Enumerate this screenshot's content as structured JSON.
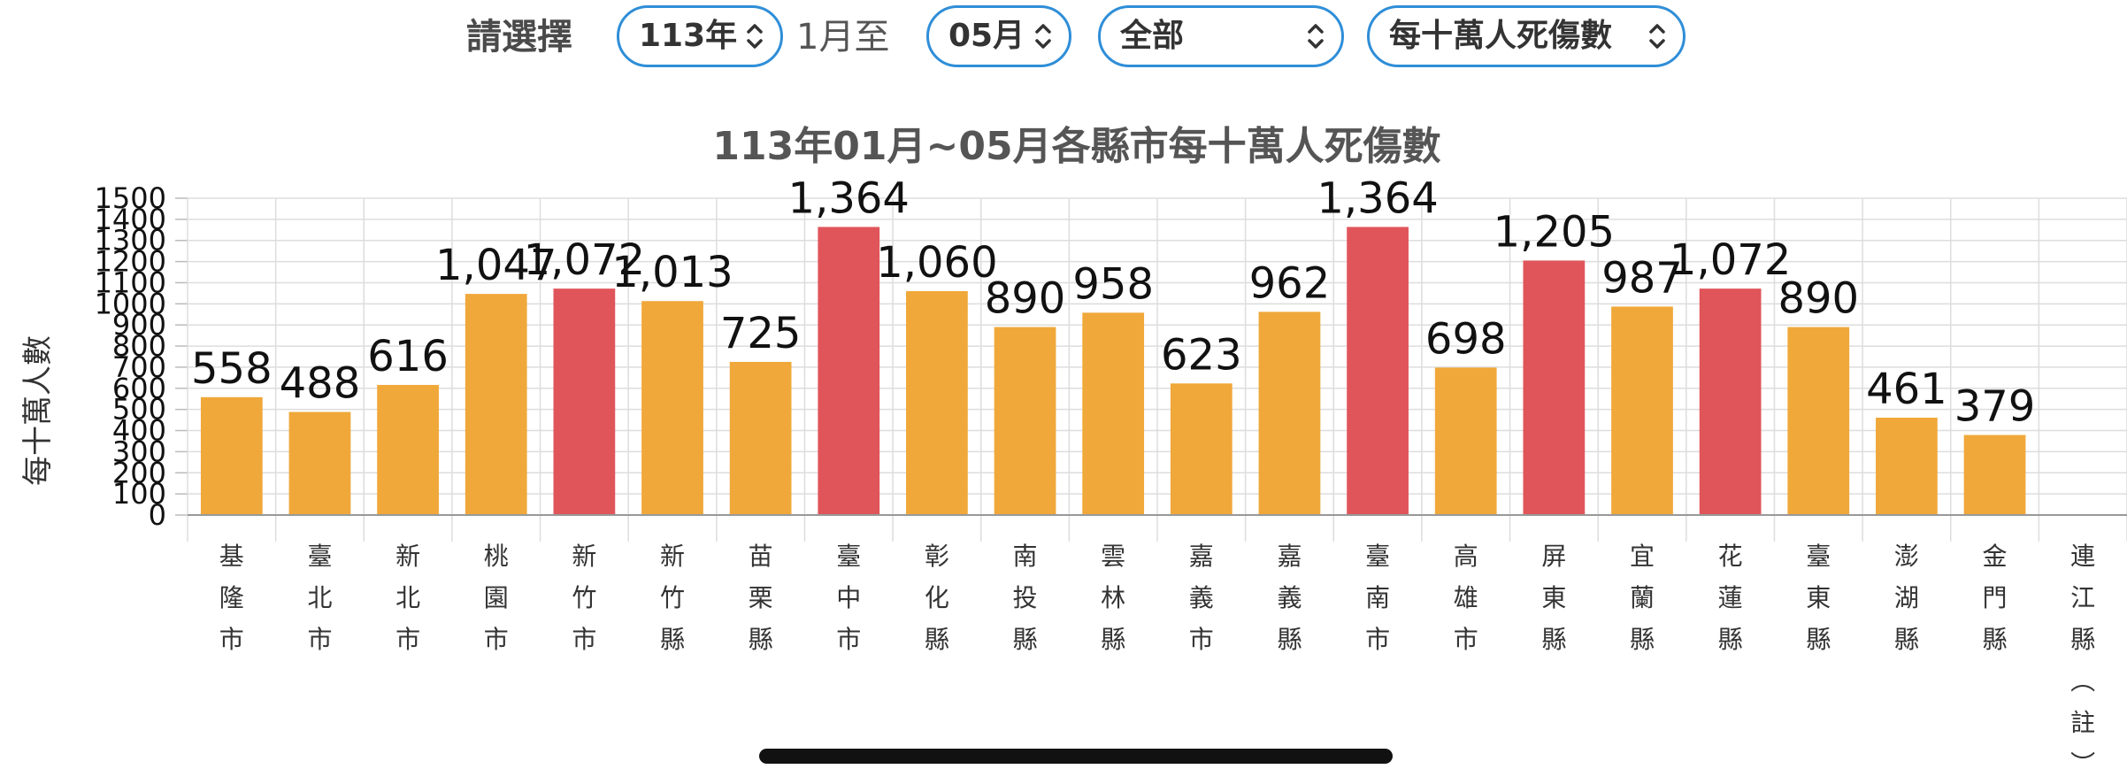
{
  "filters": {
    "prompt": "請選擇",
    "year": "113年",
    "from_month_label": "1月至",
    "to_month": "05月",
    "region": "全部",
    "metric": "每十萬人死傷數"
  },
  "colors": {
    "normal": "#f0a83a",
    "highlight": "#e0555a",
    "grid": "#dddddd",
    "accent": "#2f8ed8"
  },
  "icons": {
    "select_chevron": "chevron-up-down-icon"
  },
  "chart_data": {
    "type": "bar",
    "title": "113年01月~05月各縣市每十萬人死傷數",
    "ylabel": "每十萬人數",
    "xlabel": "",
    "ylim": [
      0,
      1500
    ],
    "yticks": [
      0,
      100,
      200,
      300,
      400,
      500,
      600,
      700,
      800,
      900,
      1000,
      1100,
      1200,
      1300,
      1400,
      1500
    ],
    "grid": true,
    "categories": [
      "基隆市",
      "臺北市",
      "新北市",
      "桃園市",
      "新竹市",
      "新竹縣",
      "苗栗縣",
      "臺中市",
      "彰化縣",
      "南投縣",
      "雲林縣",
      "嘉義市",
      "嘉義縣",
      "臺南市",
      "高雄市",
      "屏東縣",
      "宜蘭縣",
      "花蓮縣",
      "臺東縣",
      "澎湖縣",
      "金門縣",
      "連江縣（註）"
    ],
    "values": [
      558,
      488,
      616,
      1047,
      1072,
      1013,
      725,
      1364,
      1060,
      890,
      958,
      623,
      962,
      1364,
      698,
      1205,
      987,
      1072,
      890,
      461,
      379,
      null
    ],
    "value_labels": [
      "558",
      "488",
      "616",
      "1,047",
      "1,072",
      "1,013",
      "725",
      "1,364",
      "1,060",
      "890",
      "958",
      "623",
      "962",
      "1,364",
      "698",
      "1,205",
      "987",
      "1,072",
      "890",
      "461",
      "379",
      ""
    ],
    "highlighted": [
      false,
      false,
      false,
      false,
      true,
      false,
      false,
      true,
      false,
      false,
      false,
      false,
      false,
      true,
      false,
      true,
      false,
      true,
      false,
      false,
      false,
      false
    ]
  }
}
